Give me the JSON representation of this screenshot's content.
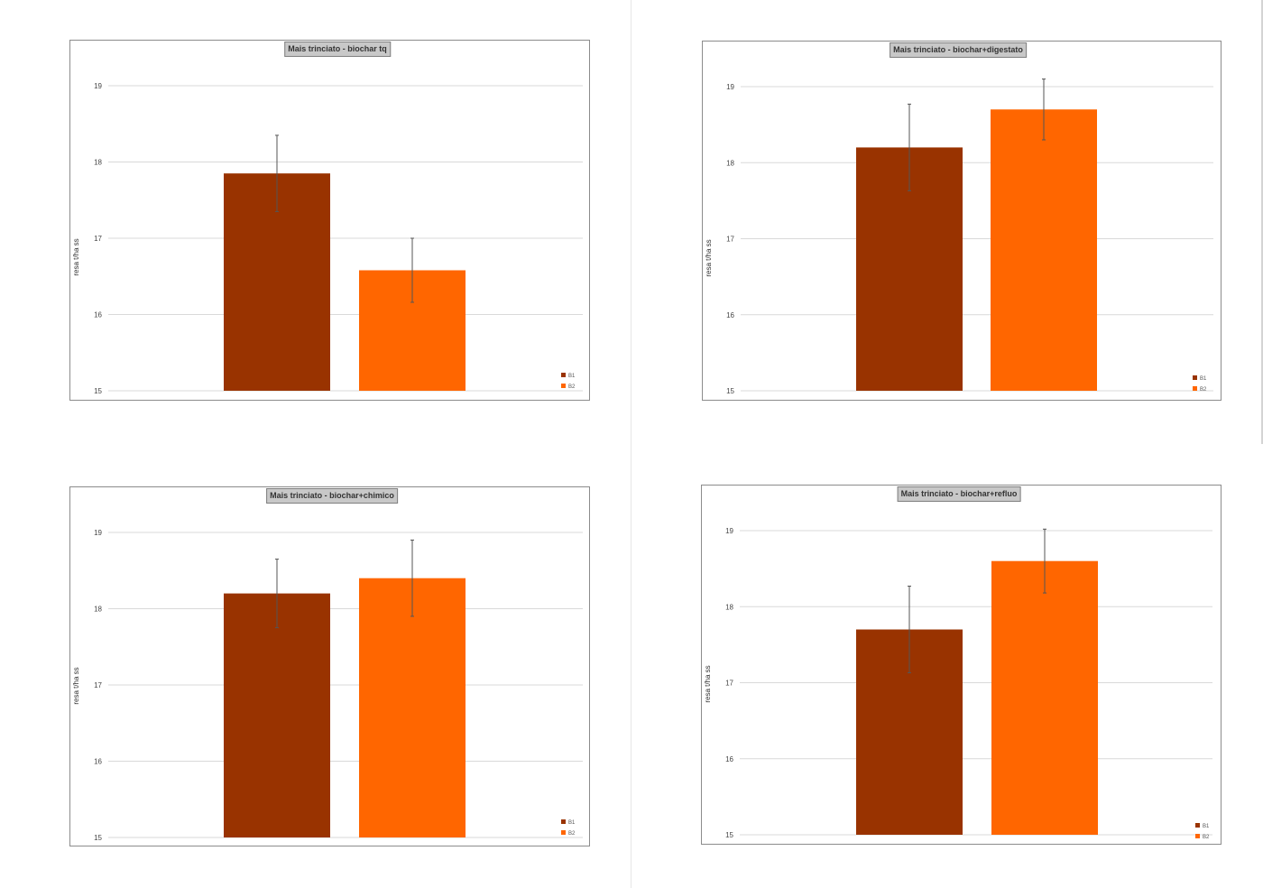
{
  "colors": {
    "B1": "#993300",
    "B2": "#FF6600"
  },
  "chart_data": [
    {
      "type": "bar",
      "title": "Mais trinciato - biochar tq",
      "ylabel": "resa t/ha ss",
      "ylim": [
        15,
        19
      ],
      "yticks": [
        15,
        16,
        17,
        18,
        19
      ],
      "grid": true,
      "legend_position": "bottom-right",
      "series": [
        {
          "name": "B1",
          "value": 17.85,
          "error": 0.5
        },
        {
          "name": "B2",
          "value": 16.58,
          "error": 0.42
        }
      ]
    },
    {
      "type": "bar",
      "title": "Mais trinciato - biochar+digestato",
      "ylabel": "resa t/ha ss",
      "ylim": [
        15,
        19
      ],
      "yticks": [
        15,
        16,
        17,
        18,
        19
      ],
      "grid": true,
      "legend_position": "bottom-right",
      "series": [
        {
          "name": "B1",
          "value": 18.2,
          "error": 0.57
        },
        {
          "name": "B2",
          "value": 18.7,
          "error": 0.4
        }
      ]
    },
    {
      "type": "bar",
      "title": "Mais trinciato - biochar+chimico",
      "ylabel": "resa t/ha ss",
      "ylim": [
        15,
        19
      ],
      "yticks": [
        15,
        16,
        17,
        18,
        19
      ],
      "grid": true,
      "legend_position": "bottom-right",
      "series": [
        {
          "name": "B1",
          "value": 18.2,
          "error": 0.45
        },
        {
          "name": "B2",
          "value": 18.4,
          "error": 0.5
        }
      ]
    },
    {
      "type": "bar",
      "title": "Mais trinciato - biochar+refluo",
      "ylabel": "resa t/ha ss",
      "ylim": [
        15,
        19
      ],
      "yticks": [
        15,
        16,
        17,
        18,
        19
      ],
      "grid": true,
      "legend_position": "bottom-right",
      "series": [
        {
          "name": "B1",
          "value": 17.7,
          "error": 0.57
        },
        {
          "name": "B2",
          "value": 18.6,
          "error": 0.42
        }
      ]
    }
  ]
}
